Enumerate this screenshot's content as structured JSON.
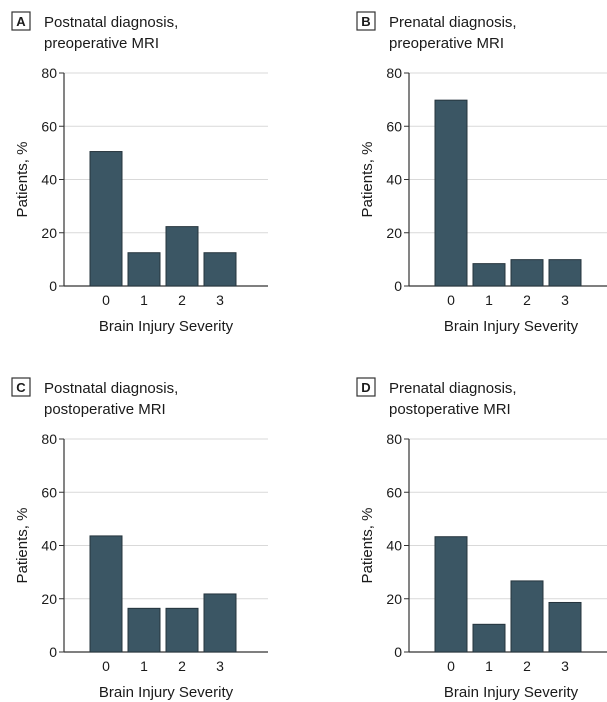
{
  "chart_data": [
    {
      "type": "bar",
      "panel_letter": "A",
      "title_lines": [
        "Postnatal diagnosis,",
        "preoperative MRI"
      ],
      "categories": [
        "0",
        "1",
        "2",
        "3"
      ],
      "values": [
        50.5,
        12.5,
        22.3,
        12.5
      ],
      "xlabel": "Brain Injury Severity",
      "ylabel": "Patients, %",
      "ylim": [
        0,
        80
      ],
      "yticks": [
        0,
        20,
        40,
        60,
        80
      ],
      "grid": true
    },
    {
      "type": "bar",
      "panel_letter": "B",
      "title_lines": [
        "Prenatal diagnosis,",
        "preoperative MRI"
      ],
      "categories": [
        "0",
        "1",
        "2",
        "3"
      ],
      "values": [
        69.8,
        8.4,
        9.9,
        9.9
      ],
      "xlabel": "Brain Injury Severity",
      "ylabel": "Patients, %",
      "ylim": [
        0,
        80
      ],
      "yticks": [
        0,
        20,
        40,
        60,
        80
      ],
      "grid": true
    },
    {
      "type": "bar",
      "panel_letter": "C",
      "title_lines": [
        "Postnatal diagnosis,",
        "postoperative MRI"
      ],
      "categories": [
        "0",
        "1",
        "2",
        "3"
      ],
      "values": [
        43.6,
        16.4,
        16.4,
        21.8
      ],
      "xlabel": "Brain Injury Severity",
      "ylabel": "Patients, %",
      "ylim": [
        0,
        80
      ],
      "yticks": [
        0,
        20,
        40,
        60,
        80
      ],
      "grid": true
    },
    {
      "type": "bar",
      "panel_letter": "D",
      "title_lines": [
        "Prenatal diagnosis,",
        "postoperative MRI"
      ],
      "categories": [
        "0",
        "1",
        "2",
        "3"
      ],
      "values": [
        43.3,
        10.4,
        26.7,
        18.6
      ],
      "xlabel": "Brain Injury Severity",
      "ylabel": "Patients, %",
      "ylim": [
        0,
        80
      ],
      "yticks": [
        0,
        20,
        40,
        60,
        80
      ],
      "grid": true
    }
  ],
  "colors": {
    "bar": "#3b5664",
    "bar_stroke": "#25343d",
    "grid": "#d9d9d9",
    "axis": "#333333"
  }
}
